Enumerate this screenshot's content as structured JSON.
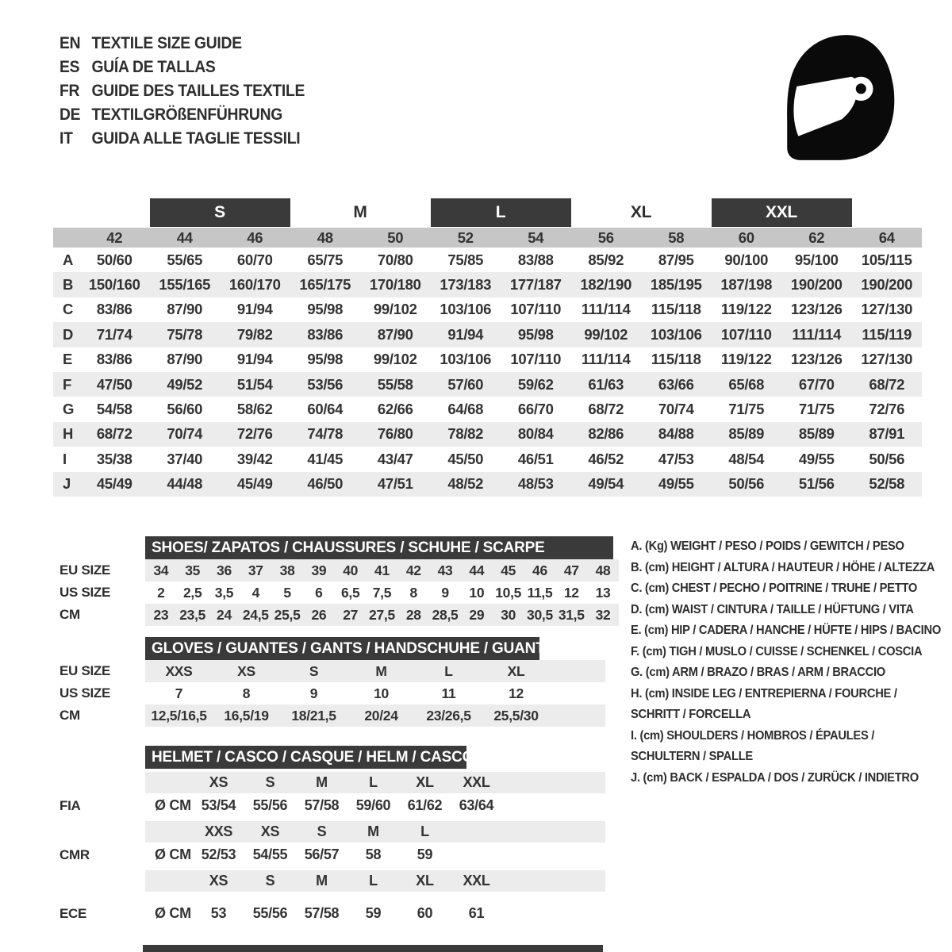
{
  "header": {
    "languages": [
      {
        "code": "EN",
        "title": "TEXTILE SIZE GUIDE"
      },
      {
        "code": "ES",
        "title": "GUÍA DE TALLAS"
      },
      {
        "code": "FR",
        "title": "GUIDE DES TAILLES TEXTILE"
      },
      {
        "code": "DE",
        "title": "TEXTILGRÖßENFÜHRUNG"
      },
      {
        "code": "IT",
        "title": "GUIDA ALLE TAGLIE TESSILI"
      }
    ],
    "icons": {
      "helmet": "racing-helmet-icon"
    }
  },
  "textile_table": {
    "size_labels": [
      {
        "label": "S",
        "boxed": true
      },
      {
        "label": "M",
        "boxed": false
      },
      {
        "label": "L",
        "boxed": true
      },
      {
        "label": "XL",
        "boxed": false
      },
      {
        "label": "XXL",
        "boxed": true
      }
    ],
    "numeric_sizes": [
      "42",
      "44",
      "46",
      "48",
      "50",
      "52",
      "54",
      "56",
      "58",
      "60",
      "62",
      "64"
    ],
    "rows": [
      {
        "label": "A",
        "values": [
          "50/60",
          "55/65",
          "60/70",
          "65/75",
          "70/80",
          "75/85",
          "83/88",
          "85/92",
          "87/95",
          "90/100",
          "95/100",
          "105/115"
        ]
      },
      {
        "label": "B",
        "values": [
          "150/160",
          "155/165",
          "160/170",
          "165/175",
          "170/180",
          "173/183",
          "177/187",
          "182/190",
          "185/195",
          "187/198",
          "190/200",
          "190/200"
        ]
      },
      {
        "label": "C",
        "values": [
          "83/86",
          "87/90",
          "91/94",
          "95/98",
          "99/102",
          "103/106",
          "107/110",
          "111/114",
          "115/118",
          "119/122",
          "123/126",
          "127/130"
        ]
      },
      {
        "label": "D",
        "values": [
          "71/74",
          "75/78",
          "79/82",
          "83/86",
          "87/90",
          "91/94",
          "95/98",
          "99/102",
          "103/106",
          "107/110",
          "111/114",
          "115/119"
        ]
      },
      {
        "label": "E",
        "values": [
          "83/86",
          "87/90",
          "91/94",
          "95/98",
          "99/102",
          "103/106",
          "107/110",
          "111/114",
          "115/118",
          "119/122",
          "123/126",
          "127/130"
        ]
      },
      {
        "label": "F",
        "values": [
          "47/50",
          "49/52",
          "51/54",
          "53/56",
          "55/58",
          "57/60",
          "59/62",
          "61/63",
          "63/66",
          "65/68",
          "67/70",
          "68/72"
        ]
      },
      {
        "label": "G",
        "values": [
          "54/58",
          "56/60",
          "58/62",
          "60/64",
          "62/66",
          "64/68",
          "66/70",
          "68/72",
          "70/74",
          "71/75",
          "71/75",
          "72/76"
        ]
      },
      {
        "label": "H",
        "values": [
          "68/72",
          "70/74",
          "72/76",
          "74/78",
          "76/80",
          "78/82",
          "80/84",
          "82/86",
          "84/88",
          "85/89",
          "85/89",
          "87/91"
        ]
      },
      {
        "label": "I",
        "values": [
          "35/38",
          "37/40",
          "39/42",
          "41/45",
          "43/47",
          "45/50",
          "46/51",
          "46/52",
          "47/53",
          "48/54",
          "49/55",
          "50/56"
        ]
      },
      {
        "label": "J",
        "values": [
          "45/49",
          "44/48",
          "45/49",
          "46/50",
          "47/51",
          "48/52",
          "48/53",
          "49/54",
          "49/55",
          "50/56",
          "51/56",
          "52/58"
        ]
      }
    ]
  },
  "shoes": {
    "title": "SHOES/ ZAPATOS / CHAUSSURES / SCHUHE / SCARPE",
    "rows": [
      {
        "label": "EU SIZE",
        "values": [
          "34",
          "35",
          "36",
          "37",
          "38",
          "39",
          "40",
          "41",
          "42",
          "43",
          "44",
          "45",
          "46",
          "47",
          "48"
        ]
      },
      {
        "label": "US SIZE",
        "values": [
          "2",
          "2,5",
          "3,5",
          "4",
          "5",
          "6",
          "6,5",
          "7,5",
          "8",
          "9",
          "10",
          "10,5",
          "11,5",
          "12",
          "13"
        ]
      },
      {
        "label": "CM",
        "values": [
          "23",
          "23,5",
          "24",
          "24,5",
          "25,5",
          "26",
          "27",
          "27,5",
          "28",
          "28,5",
          "29",
          "30",
          "30,5",
          "31,5",
          "32"
        ]
      }
    ]
  },
  "gloves": {
    "title": "GLOVES / GUANTES / GANTS / HANDSCHUHE / GUANTI",
    "rows": [
      {
        "label": "EU SIZE",
        "values": [
          "XXS",
          "XS",
          "S",
          "M",
          "L",
          "XL"
        ]
      },
      {
        "label": "US SIZE",
        "values": [
          "7",
          "8",
          "9",
          "10",
          "11",
          "12"
        ]
      },
      {
        "label": "CM",
        "values": [
          "12,5/16,5",
          "16,5/19",
          "18/21,5",
          "20/24",
          "23/26,5",
          "25,5/30"
        ]
      }
    ]
  },
  "helmet": {
    "title": "HELMET / CASCO / CASQUE / HELM / CASCO",
    "groups": [
      {
        "label": "FIA",
        "diameter_label": "Ø CM",
        "sizes": [
          "XS",
          "S",
          "M",
          "L",
          "XL",
          "XXL"
        ],
        "values": [
          "53/54",
          "55/56",
          "57/58",
          "59/60",
          "61/62",
          "63/64"
        ]
      },
      {
        "label": "CMR",
        "diameter_label": "Ø CM",
        "sizes": [
          "XXS",
          "XS",
          "S",
          "M",
          "L"
        ],
        "values": [
          "52/53",
          "54/55",
          "56/57",
          "58",
          "59"
        ]
      },
      {
        "label": "ECE",
        "diameter_label": "Ø CM",
        "sizes": [
          "XS",
          "S",
          "M",
          "L",
          "XL",
          "XXL"
        ],
        "values": [
          "53",
          "55/56",
          "57/58",
          "59",
          "60",
          "61"
        ]
      }
    ]
  },
  "legend": {
    "items": [
      "A. (Kg) WEIGHT / PESO / POIDS / GEWITCH / PESO",
      "B. (cm) HEIGHT / ALTURA / HAUTEUR / HÖHE / ALTEZZA",
      "C. (cm) CHEST / PECHO / POITRINE / TRUHE / PETTO",
      "D. (cm) WAIST / CINTURA / TAILLE / HÜFTUNG / VITA",
      "E. (cm) HIP / CADERA / HANCHE / HÜFTE / HIPS /  BACINO",
      "F. (cm) TIGH / MUSLO / CUISSE / SCHENKEL / COSCIA",
      "G. (cm) ARM / BRAZO / BRAS / ARM / BRACCIO",
      "H. (cm) INSIDE LEG / ENTREPIERNA / FOURCHE / SCHRITT / FORCELLA",
      "I. (cm) SHOULDERS / HOMBROS / ÉPAULES / SCHULTERN / SPALLE",
      "J. (cm) BACK / ESPALDA / DOS / ZURÜCK / INDIETRO"
    ]
  },
  "colors": {
    "bar_dark": "#3a3a3a",
    "numeric_strip": "#c6c6c6",
    "row_stripe": "#ececec",
    "text": "#2e2e2e",
    "helmet_icon": "#0a0a0a"
  }
}
